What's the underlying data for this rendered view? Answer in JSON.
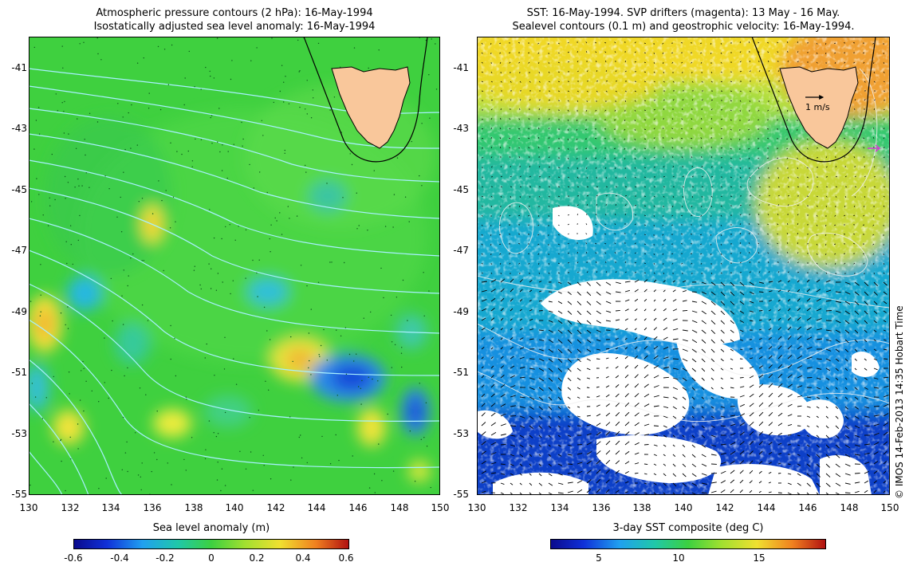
{
  "left_map": {
    "title_line1": "Atmospheric pressure contours (2 hPa): 16-May-1994",
    "title_line2": "Isostatically adjusted sea level anomaly: 16-May-1994",
    "lat_ticks": [
      "-41",
      "-43",
      "-45",
      "-47",
      "-49",
      "-51",
      "-53",
      "-55"
    ],
    "lon_ticks": [
      "130",
      "132",
      "134",
      "136",
      "138",
      "140",
      "142",
      "144",
      "146",
      "148",
      "150"
    ],
    "colorbar": {
      "title": "Sea level anomaly (m)",
      "ticks": [
        "-0.6",
        "-0.4",
        "-0.2",
        "0",
        "0.2",
        "0.4",
        "0.6"
      ],
      "range": [
        -0.6,
        0.6
      ]
    }
  },
  "right_map": {
    "title_line1": "SST: 16-May-1994. SVP drifters (magenta): 13 May - 16 May.",
    "title_line2": "Sealevel contours (0.1 m) and geostrophic velocity: 16-May-1994.",
    "lat_ticks": [
      "-41",
      "-43",
      "-45",
      "-47",
      "-49",
      "-51",
      "-53",
      "-55"
    ],
    "lon_ticks": [
      "130",
      "132",
      "134",
      "136",
      "138",
      "140",
      "142",
      "144",
      "146",
      "148",
      "150"
    ],
    "scale_label": "1 m/s",
    "colorbar": {
      "title": "3-day SST composite (deg C)",
      "ticks": [
        "5",
        "10",
        "15"
      ],
      "range": [
        2,
        19
      ]
    }
  },
  "credit": "© IMOS 14-Feb-2013 14:35 Hobart Time",
  "map_extent": {
    "lon": [
      130,
      150
    ],
    "lat": [
      -55,
      -40
    ]
  },
  "colors": {
    "land": "#f9c79b",
    "ocean_mean": "#3ed23e",
    "contour": "#a8f0ff",
    "no_data": "#ffffff"
  }
}
